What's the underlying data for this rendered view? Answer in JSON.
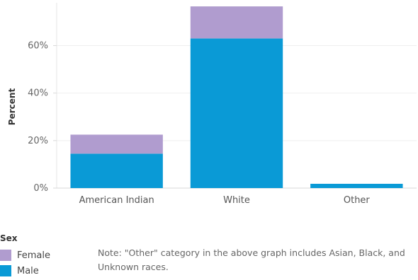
{
  "chart_data": {
    "type": "bar",
    "stacked": true,
    "categories": [
      "American Indian",
      "White",
      "Other"
    ],
    "series": [
      {
        "name": "Male",
        "values": [
          14.5,
          63,
          1.8
        ],
        "color": "#0a9ad6"
      },
      {
        "name": "Female",
        "values": [
          8,
          13.5,
          0
        ],
        "color": "#b09ccf"
      }
    ],
    "ylabel": "Percent",
    "ylim": [
      0,
      78
    ],
    "yticks": [
      0,
      20,
      40,
      60
    ],
    "ytick_labels": [
      "0%",
      "20%",
      "40%",
      "60%"
    ],
    "grid": true,
    "legend_placement": "bottom-left"
  },
  "legend": {
    "title": "Sex",
    "items": [
      {
        "label": "Female",
        "color": "#b09ccf"
      },
      {
        "label": "Male",
        "color": "#0a9ad6"
      }
    ]
  },
  "note": "Note: \"Other\" category in the above graph includes Asian, Black, and Unknown races."
}
